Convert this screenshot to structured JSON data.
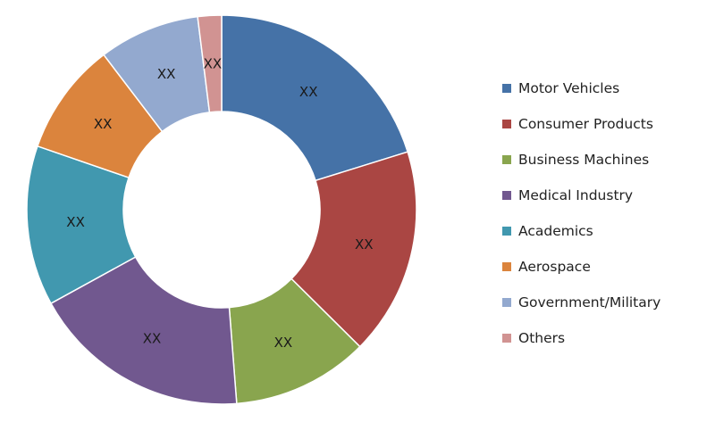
{
  "chart_data": {
    "type": "donut",
    "title": "",
    "legend_position": "right",
    "series": [
      {
        "name": "Motor Vehicles",
        "share": 0.205,
        "label": "XX",
        "color": "#4572A7"
      },
      {
        "name": "Consumer Products",
        "share": 0.175,
        "label": "XX",
        "color": "#AA4643"
      },
      {
        "name": "Business Machines",
        "share": 0.115,
        "label": "XX",
        "color": "#89A54E"
      },
      {
        "name": "Medical Industry",
        "share": 0.185,
        "label": "XX",
        "color": "#71588F"
      },
      {
        "name": "Academics",
        "share": 0.135,
        "label": "XX",
        "color": "#4198AF"
      },
      {
        "name": "Aerospace",
        "share": 0.095,
        "label": "XX",
        "color": "#DB843D"
      },
      {
        "name": "Government/Military",
        "share": 0.085,
        "label": "XX",
        "color": "#93A9CF"
      },
      {
        "name": "Others",
        "share": 0.02,
        "label": "XX",
        "color": "#D19392"
      }
    ]
  }
}
